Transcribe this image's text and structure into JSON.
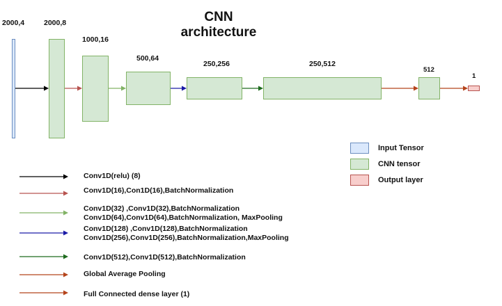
{
  "title": {
    "line1": "CNN",
    "line2": "architecture"
  },
  "colors": {
    "input_fill": "#dae8fc",
    "input_stroke": "#6c8ebf",
    "cnn_fill": "#d5e8d4",
    "cnn_stroke": "#82b366",
    "output_fill": "#f8cecc",
    "output_stroke": "#b85450"
  },
  "blocks": [
    {
      "label": "2000,4",
      "kind": "input"
    },
    {
      "label": "2000,8",
      "kind": "cnn"
    },
    {
      "label": "1000,16",
      "kind": "cnn"
    },
    {
      "label": "500,64",
      "kind": "cnn"
    },
    {
      "label": "250,256",
      "kind": "cnn"
    },
    {
      "label": "250,512",
      "kind": "cnn"
    },
    {
      "label": "512",
      "kind": "cnn"
    },
    {
      "label": "1",
      "kind": "output"
    }
  ],
  "flow_arrow_colors": [
    "#000000",
    "#b85450",
    "#82b366",
    "#1a1aa6",
    "#1e6b1e",
    "#b5441b",
    "#b5441b"
  ],
  "legend": [
    {
      "label": "Input Tensor",
      "kind": "input"
    },
    {
      "label": "CNN tensor",
      "kind": "cnn"
    },
    {
      "label": "Output layer",
      "kind": "output"
    }
  ],
  "arrow_legend": [
    {
      "color": "#000000",
      "lines": [
        "Conv1D(relu) (8)"
      ]
    },
    {
      "color": "#b85450",
      "lines": [
        "Conv1D(16),Con1D(16),BatchNormalization"
      ]
    },
    {
      "color": "#82b366",
      "lines": [
        "Conv1D(32) ,Conv1D(32),BatchNormalization",
        "Conv1D(64),Conv1D(64),BatchNormalization, MaxPooling"
      ]
    },
    {
      "color": "#1a1aa6",
      "lines": [
        "Conv1D(128) ,Conv1D(128),BatchNormalization",
        "Conv1D(256),Conv1D(256),BatchNormalization,MaxPooling"
      ]
    },
    {
      "color": "#1e6b1e",
      "lines": [
        "Conv1D(512),Conv1D(512),BatchNormalization"
      ]
    },
    {
      "color": "#b5441b",
      "lines": [
        "Global Average Pooling"
      ]
    },
    {
      "color": "#b5441b",
      "lines": [
        "Full Connected dense layer (1)"
      ]
    }
  ]
}
